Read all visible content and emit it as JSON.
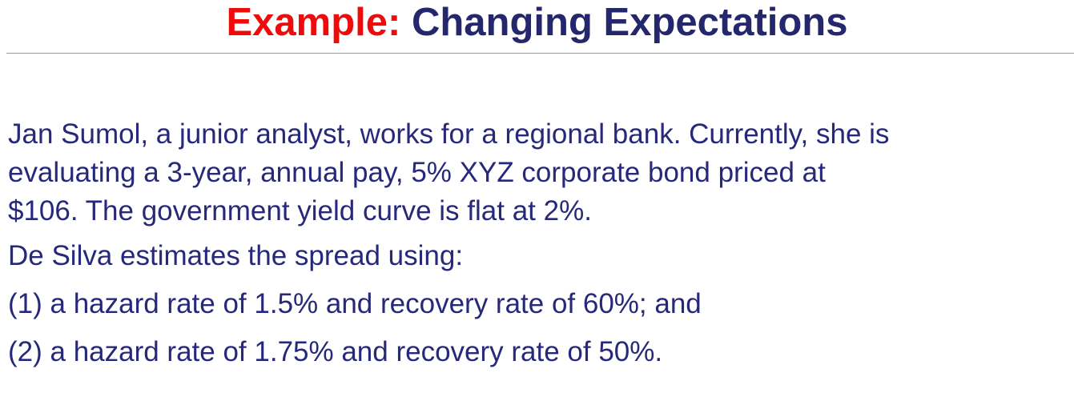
{
  "slide": {
    "title_lead": "Example:",
    "title_main": "Changing Expectations"
  },
  "content": {
    "paragraph_1": "Jan Sumol, a junior analyst, works for a regional bank. Currently, she is\nevaluating a 3-year, annual pay, 5% XYZ corporate bond priced at\n$106. The government yield curve is flat at 2%.",
    "paragraph_2": "De Silva estimates the spread using:",
    "paragraph_3": "(1) a hazard rate of 1.5% and recovery rate of 60%; and",
    "paragraph_4": "(2) a hazard rate of 1.75% and recovery rate of 50%."
  },
  "colors": {
    "title_lead": "#ee0b0b",
    "title_main": "#24276b",
    "body_text": "#26287a",
    "rule": "#9a9a9a"
  }
}
